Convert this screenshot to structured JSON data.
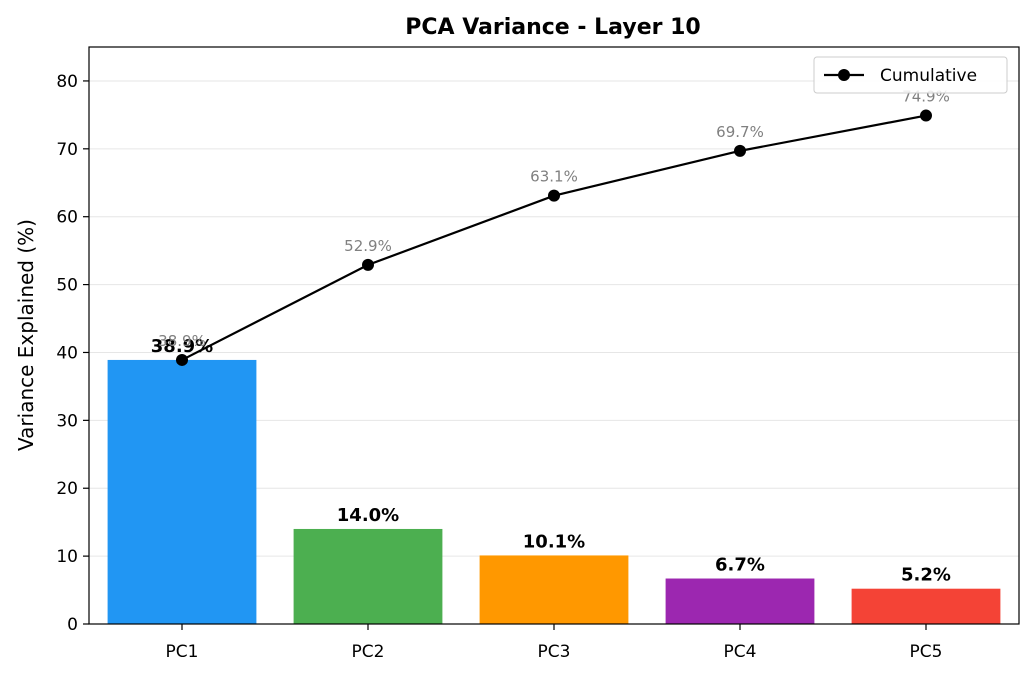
{
  "chart_data": {
    "type": "bar",
    "title": "PCA Variance - Layer 10",
    "xlabel": "",
    "ylabel": "Variance Explained (%)",
    "ylim": [
      0,
      85
    ],
    "yticks": [
      0,
      10,
      20,
      30,
      40,
      50,
      60,
      70,
      80
    ],
    "grid": true,
    "legend_position": "top-right",
    "categories": [
      "PC1",
      "PC2",
      "PC3",
      "PC4",
      "PC5"
    ],
    "values": [
      38.9,
      14.0,
      10.1,
      6.7,
      5.2
    ],
    "value_labels": [
      "38.9%",
      "14.0%",
      "10.1%",
      "6.7%",
      "5.2%"
    ],
    "bar_colors": [
      "#2196F3",
      "#4CAF50",
      "#FF9800",
      "#9C27B0",
      "#F44336"
    ],
    "cumulative": {
      "name": "Cumulative",
      "type": "line",
      "color": "#000000",
      "values": [
        38.9,
        52.9,
        63.1,
        69.7,
        74.9
      ],
      "labels": [
        "38.9%",
        "52.9%",
        "63.1%",
        "69.7%",
        "74.9%"
      ]
    }
  }
}
